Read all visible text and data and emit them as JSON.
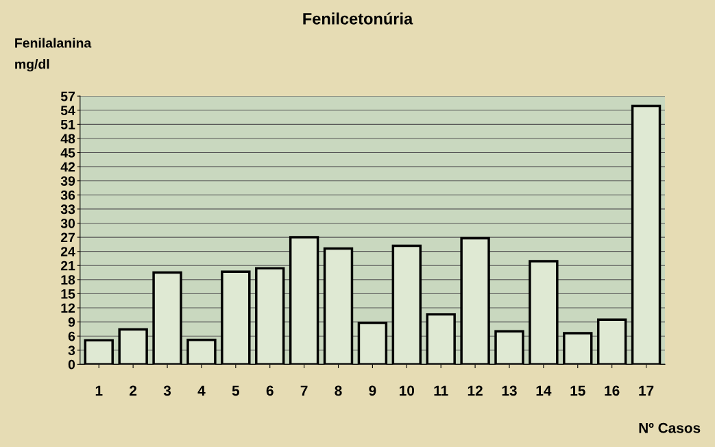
{
  "chart_data": {
    "type": "bar",
    "title": "Fenilcetonúria",
    "ylabel": "Fenilalanina\nmg/dl",
    "xlabel": "Nº Casos",
    "categories": [
      "1",
      "2",
      "3",
      "4",
      "5",
      "6",
      "7",
      "8",
      "9",
      "10",
      "11",
      "12",
      "13",
      "14",
      "15",
      "16",
      "17"
    ],
    "values": [
      5.1,
      7.4,
      19.5,
      5.2,
      19.7,
      20.4,
      27.0,
      24.6,
      8.8,
      25.2,
      10.6,
      26.8,
      7.0,
      21.9,
      6.6,
      9.5,
      54.9
    ],
    "color": "#dfe9d3",
    "ylim": [
      0,
      57
    ],
    "yticks": [
      0,
      3,
      6,
      9,
      12,
      15,
      18,
      21,
      24,
      27,
      30,
      33,
      36,
      39,
      42,
      45,
      48,
      51,
      54,
      57
    ],
    "grid": "y"
  }
}
